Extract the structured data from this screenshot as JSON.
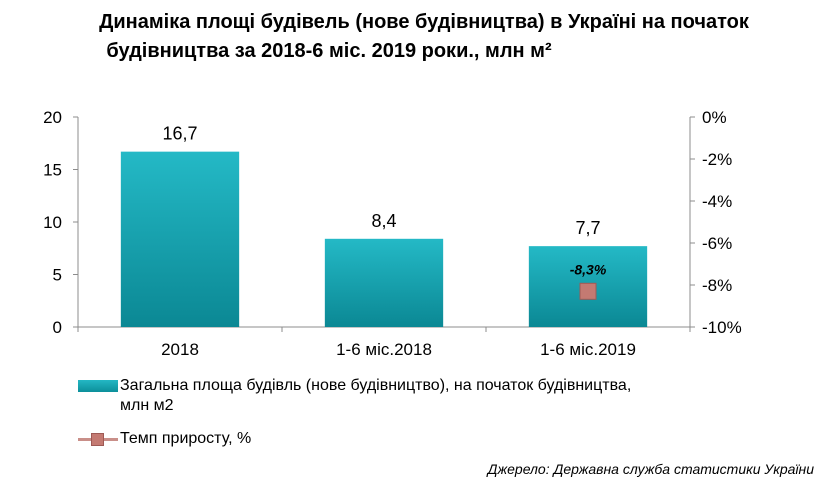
{
  "title": {
    "line1": "Динаміка площі будівель (нове будівництва) в Україні на початок",
    "line2": "будівництва за 2018-6 міс. 2019 роки., млн м²"
  },
  "chart_data": {
    "type": "bar",
    "categories": [
      "2018",
      "1-6 міс.2018",
      "1-6 міс.2019"
    ],
    "series": [
      {
        "name": "Загальна площа будівль (нове будівництво), на початок будівництва, млн м2",
        "type": "bar",
        "axis": "left",
        "values": [
          16.7,
          8.4,
          7.7
        ],
        "value_labels": [
          "16,7",
          "8,4",
          "7,7"
        ],
        "color": "#17a4b0"
      },
      {
        "name": "Темп приросту, %",
        "type": "line",
        "axis": "right",
        "values": [
          null,
          null,
          -8.3
        ],
        "value_labels": [
          null,
          null,
          "-8,3%"
        ],
        "color": "#c47a72"
      }
    ],
    "y_left": {
      "ylim": [
        0,
        20
      ],
      "ticks": [
        0,
        5,
        10,
        15,
        20
      ],
      "tick_labels": [
        "0",
        "5",
        "10",
        "15",
        "20"
      ]
    },
    "y_right": {
      "ylim": [
        -10,
        0
      ],
      "ticks": [
        0,
        -2,
        -4,
        -6,
        -8,
        -10
      ],
      "tick_labels": [
        "0%",
        "-2%",
        "-4%",
        "-6%",
        "-8%",
        "-10%"
      ]
    },
    "grid": false,
    "legend_position": "bottom-left"
  },
  "legend": {
    "bar_line1": "Загальна площа будівль (нове будівництво), на початок будівництва,",
    "bar_line2": "млн  м2",
    "line_label": "Темп приросту, %"
  },
  "source": "Джерело: Державна служба статистики України"
}
